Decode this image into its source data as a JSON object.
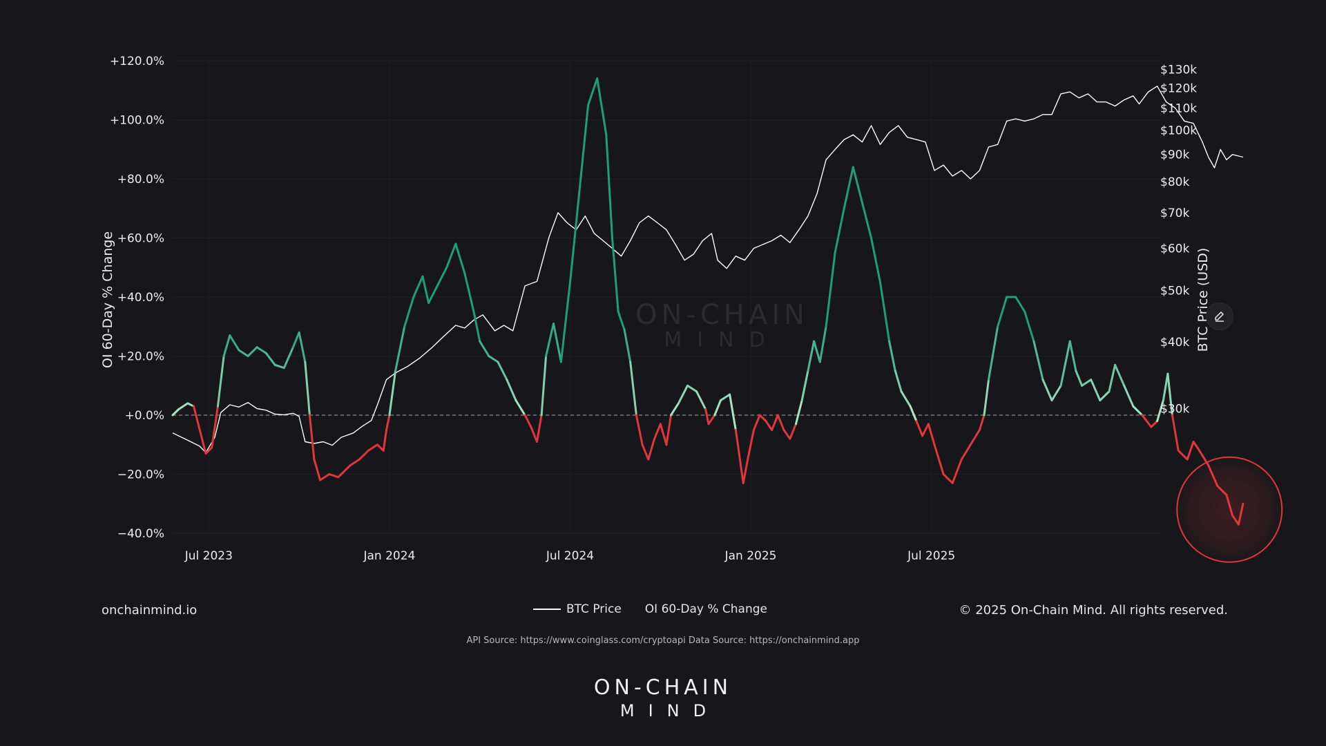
{
  "footer": {
    "site": "onchainmind.io",
    "copyright": "© 2025 On-Chain Mind. All rights reserved.",
    "api_source": "API Source: https://www.coinglass.com/cryptoapi Data Source: https://onchainmind.app",
    "logo_top": "ON-CHAIN",
    "logo_bottom": "MIND"
  },
  "watermark": {
    "top": "ON-CHAIN",
    "bottom": "MIND"
  },
  "legend": {
    "btc": "BTC Price",
    "oi": "OI 60-Day % Change"
  },
  "colors": {
    "background": "#17171b",
    "positive": "#1f9e7a",
    "positive_light": "#aee8c4",
    "negative": "#e0373b",
    "price": "#ffffff",
    "highlight": "#e0373b"
  },
  "chart_data": {
    "type": "line",
    "title": "",
    "xlabel": "",
    "ylabel": "OI 60-Day % Change",
    "y2label": "BTC Price (USD)",
    "x_ticks": [
      {
        "label": "Jul 2023",
        "month": 0
      },
      {
        "label": "Jan 2024",
        "month": 6
      },
      {
        "label": "Jul 2024",
        "month": 12
      },
      {
        "label": "Jan 2025",
        "month": 18
      },
      {
        "label": "Jul 2025",
        "month": 24
      }
    ],
    "x_range_months": [
      -1.2,
      31.6
    ],
    "y_left": {
      "range": [
        -40,
        120
      ],
      "ticks": [
        {
          "label": "+120.0%",
          "value": 120
        },
        {
          "label": "+100.0%",
          "value": 100
        },
        {
          "label": "+80.0%",
          "value": 80
        },
        {
          "label": "+60.0%",
          "value": 60
        },
        {
          "label": "+40.0%",
          "value": 40
        },
        {
          "label": "+20.0%",
          "value": 20
        },
        {
          "label": "+0.0%",
          "value": 0
        },
        {
          "label": "−20.0%",
          "value": -20
        },
        {
          "label": "−40.0%",
          "value": -40
        }
      ]
    },
    "y_right": {
      "scale": "log",
      "range": [
        17500,
        135000
      ],
      "ticks": [
        {
          "label": "$130k",
          "value": 130000
        },
        {
          "label": "$120k",
          "value": 120000
        },
        {
          "label": "$110k",
          "value": 110000
        },
        {
          "label": "$100k",
          "value": 100000
        },
        {
          "label": "$90k",
          "value": 90000
        },
        {
          "label": "$80k",
          "value": 80000
        },
        {
          "label": "$70k",
          "value": 70000
        },
        {
          "label": "$60k",
          "value": 60000
        },
        {
          "label": "$50k",
          "value": 50000
        },
        {
          "label": "$40k",
          "value": 40000
        },
        {
          "label": "$30k",
          "value": 30000
        }
      ]
    },
    "zero_line": 0,
    "series": [
      {
        "name": "OI 60-Day % Change",
        "axis": "left",
        "points": [
          [
            -1.2,
            0
          ],
          [
            -1.0,
            2
          ],
          [
            -0.7,
            4
          ],
          [
            -0.5,
            3
          ],
          [
            -0.3,
            -5
          ],
          [
            -0.1,
            -13
          ],
          [
            0.1,
            -11
          ],
          [
            0.3,
            3
          ],
          [
            0.5,
            20
          ],
          [
            0.7,
            27
          ],
          [
            1.0,
            22
          ],
          [
            1.3,
            20
          ],
          [
            1.6,
            23
          ],
          [
            1.9,
            21
          ],
          [
            2.2,
            17
          ],
          [
            2.5,
            16
          ],
          [
            2.8,
            23
          ],
          [
            3.0,
            28
          ],
          [
            3.2,
            18
          ],
          [
            3.35,
            0
          ],
          [
            3.5,
            -15
          ],
          [
            3.7,
            -22
          ],
          [
            4.0,
            -20
          ],
          [
            4.3,
            -21
          ],
          [
            4.7,
            -17
          ],
          [
            5.0,
            -15
          ],
          [
            5.3,
            -12
          ],
          [
            5.6,
            -10
          ],
          [
            5.8,
            -12
          ],
          [
            5.9,
            -5
          ],
          [
            6.0,
            0
          ],
          [
            6.2,
            15
          ],
          [
            6.5,
            30
          ],
          [
            6.8,
            40
          ],
          [
            7.1,
            47
          ],
          [
            7.3,
            38
          ],
          [
            7.6,
            44
          ],
          [
            7.9,
            50
          ],
          [
            8.2,
            58
          ],
          [
            8.5,
            48
          ],
          [
            8.8,
            35
          ],
          [
            9.0,
            25
          ],
          [
            9.3,
            20
          ],
          [
            9.6,
            18
          ],
          [
            9.9,
            12
          ],
          [
            10.2,
            5
          ],
          [
            10.5,
            0
          ],
          [
            10.7,
            -4
          ],
          [
            10.9,
            -9
          ],
          [
            11.05,
            0
          ],
          [
            11.2,
            20
          ],
          [
            11.45,
            31
          ],
          [
            11.7,
            18
          ],
          [
            12.0,
            45
          ],
          [
            12.3,
            75
          ],
          [
            12.6,
            105
          ],
          [
            12.9,
            114
          ],
          [
            13.2,
            95
          ],
          [
            13.4,
            60
          ],
          [
            13.6,
            35
          ],
          [
            13.8,
            29
          ],
          [
            14.0,
            18
          ],
          [
            14.2,
            0
          ],
          [
            14.4,
            -10
          ],
          [
            14.6,
            -15
          ],
          [
            14.8,
            -8
          ],
          [
            15.0,
            -3
          ],
          [
            15.2,
            -10
          ],
          [
            15.35,
            0
          ],
          [
            15.6,
            4
          ],
          [
            15.9,
            10
          ],
          [
            16.2,
            8
          ],
          [
            16.5,
            2
          ],
          [
            16.6,
            -3
          ],
          [
            16.8,
            0
          ],
          [
            17.0,
            5
          ],
          [
            17.3,
            7
          ],
          [
            17.5,
            -5
          ],
          [
            17.6,
            -12
          ],
          [
            17.75,
            -23
          ],
          [
            17.9,
            -15
          ],
          [
            18.1,
            -5
          ],
          [
            18.3,
            0
          ],
          [
            18.5,
            -2
          ],
          [
            18.7,
            -5
          ],
          [
            18.9,
            0
          ],
          [
            19.1,
            -5
          ],
          [
            19.3,
            -8
          ],
          [
            19.5,
            -3
          ],
          [
            19.7,
            5
          ],
          [
            19.9,
            15
          ],
          [
            20.1,
            25
          ],
          [
            20.3,
            18
          ],
          [
            20.5,
            30
          ],
          [
            20.8,
            55
          ],
          [
            21.1,
            70
          ],
          [
            21.4,
            84
          ],
          [
            21.7,
            72
          ],
          [
            22.0,
            60
          ],
          [
            22.3,
            45
          ],
          [
            22.6,
            25
          ],
          [
            22.8,
            15
          ],
          [
            23.0,
            8
          ],
          [
            23.3,
            3
          ],
          [
            23.5,
            -2
          ],
          [
            23.7,
            -7
          ],
          [
            23.9,
            -3
          ],
          [
            24.1,
            -10
          ],
          [
            24.4,
            -20
          ],
          [
            24.7,
            -23
          ],
          [
            25.0,
            -15
          ],
          [
            25.3,
            -10
          ],
          [
            25.6,
            -5
          ],
          [
            25.75,
            0
          ],
          [
            25.9,
            12
          ],
          [
            26.2,
            30
          ],
          [
            26.5,
            40
          ],
          [
            26.8,
            40
          ],
          [
            27.1,
            35
          ],
          [
            27.4,
            25
          ],
          [
            27.7,
            12
          ],
          [
            28.0,
            5
          ],
          [
            28.3,
            10
          ],
          [
            28.6,
            25
          ],
          [
            28.8,
            15
          ],
          [
            29.0,
            10
          ],
          [
            29.3,
            12
          ],
          [
            29.6,
            5
          ],
          [
            29.9,
            8
          ],
          [
            30.1,
            17
          ],
          [
            30.4,
            10
          ],
          [
            30.7,
            3
          ],
          [
            31.0,
            0
          ],
          [
            31.3,
            -4
          ],
          [
            31.5,
            -2
          ],
          [
            31.7,
            5
          ],
          [
            31.85,
            14
          ],
          [
            32.0,
            0
          ],
          [
            32.2,
            -12
          ],
          [
            32.5,
            -15
          ],
          [
            32.7,
            -9
          ],
          [
            32.9,
            -12
          ],
          [
            33.2,
            -17
          ],
          [
            33.5,
            -24
          ],
          [
            33.8,
            -27
          ],
          [
            34.0,
            -34
          ],
          [
            34.2,
            -37
          ],
          [
            34.35,
            -30
          ]
        ]
      },
      {
        "name": "BTC Price",
        "axis": "right",
        "points": [
          [
            -1.2,
            27000
          ],
          [
            -0.9,
            26500
          ],
          [
            -0.6,
            26000
          ],
          [
            -0.3,
            25500
          ],
          [
            -0.1,
            24800
          ],
          [
            0.2,
            26500
          ],
          [
            0.4,
            29500
          ],
          [
            0.7,
            30500
          ],
          [
            1.0,
            30200
          ],
          [
            1.3,
            30800
          ],
          [
            1.6,
            30000
          ],
          [
            1.9,
            29800
          ],
          [
            2.2,
            29300
          ],
          [
            2.5,
            29200
          ],
          [
            2.8,
            29400
          ],
          [
            3.0,
            29000
          ],
          [
            3.2,
            26000
          ],
          [
            3.5,
            25800
          ],
          [
            3.8,
            26000
          ],
          [
            4.1,
            25600
          ],
          [
            4.4,
            26500
          ],
          [
            4.8,
            27000
          ],
          [
            5.1,
            27800
          ],
          [
            5.4,
            28500
          ],
          [
            5.6,
            30500
          ],
          [
            5.9,
            34000
          ],
          [
            6.2,
            35000
          ],
          [
            6.6,
            36000
          ],
          [
            7.0,
            37300
          ],
          [
            7.4,
            39000
          ],
          [
            7.8,
            41000
          ],
          [
            8.2,
            43000
          ],
          [
            8.5,
            42500
          ],
          [
            8.8,
            44000
          ],
          [
            9.1,
            45000
          ],
          [
            9.5,
            42000
          ],
          [
            9.8,
            43000
          ],
          [
            10.1,
            42000
          ],
          [
            10.5,
            51000
          ],
          [
            10.9,
            52000
          ],
          [
            11.3,
            63000
          ],
          [
            11.6,
            70000
          ],
          [
            11.9,
            67000
          ],
          [
            12.2,
            65000
          ],
          [
            12.5,
            69000
          ],
          [
            12.8,
            64000
          ],
          [
            13.1,
            62000
          ],
          [
            13.4,
            60000
          ],
          [
            13.7,
            58000
          ],
          [
            14.0,
            62000
          ],
          [
            14.3,
            67000
          ],
          [
            14.6,
            69000
          ],
          [
            14.9,
            67000
          ],
          [
            15.2,
            65000
          ],
          [
            15.5,
            61000
          ],
          [
            15.8,
            57000
          ],
          [
            16.1,
            58500
          ],
          [
            16.4,
            62000
          ],
          [
            16.7,
            64000
          ],
          [
            16.9,
            57000
          ],
          [
            17.2,
            55000
          ],
          [
            17.5,
            58000
          ],
          [
            17.8,
            57000
          ],
          [
            18.1,
            60000
          ],
          [
            18.4,
            61000
          ],
          [
            18.7,
            62000
          ],
          [
            19.0,
            63500
          ],
          [
            19.3,
            61500
          ],
          [
            19.6,
            65000
          ],
          [
            19.9,
            69000
          ],
          [
            20.2,
            76000
          ],
          [
            20.5,
            88000
          ],
          [
            20.8,
            92000
          ],
          [
            21.1,
            96000
          ],
          [
            21.4,
            98000
          ],
          [
            21.7,
            95000
          ],
          [
            22.0,
            102000
          ],
          [
            22.3,
            94000
          ],
          [
            22.6,
            99000
          ],
          [
            22.9,
            102000
          ],
          [
            23.2,
            97000
          ],
          [
            23.5,
            96000
          ],
          [
            23.8,
            95000
          ],
          [
            24.1,
            84000
          ],
          [
            24.4,
            86000
          ],
          [
            24.7,
            82000
          ],
          [
            25.0,
            84000
          ],
          [
            25.3,
            81000
          ],
          [
            25.6,
            84000
          ],
          [
            25.9,
            93000
          ],
          [
            26.2,
            94000
          ],
          [
            26.5,
            104000
          ],
          [
            26.8,
            105000
          ],
          [
            27.1,
            104000
          ],
          [
            27.4,
            105000
          ],
          [
            27.7,
            107000
          ],
          [
            28.0,
            107000
          ],
          [
            28.3,
            117000
          ],
          [
            28.6,
            118000
          ],
          [
            28.9,
            115000
          ],
          [
            29.2,
            117000
          ],
          [
            29.5,
            113000
          ],
          [
            29.8,
            113000
          ],
          [
            30.1,
            111000
          ],
          [
            30.4,
            114000
          ],
          [
            30.7,
            116000
          ],
          [
            30.9,
            112000
          ],
          [
            31.2,
            118000
          ],
          [
            31.5,
            121000
          ],
          [
            31.8,
            113000
          ],
          [
            32.1,
            110000
          ],
          [
            32.4,
            104000
          ],
          [
            32.7,
            103000
          ],
          [
            33.0,
            95000
          ],
          [
            33.2,
            89000
          ],
          [
            33.4,
            85000
          ],
          [
            33.6,
            92000
          ],
          [
            33.8,
            88000
          ],
          [
            34.0,
            90000
          ],
          [
            34.35,
            89000
          ]
        ]
      }
    ],
    "annotations": [
      {
        "type": "circle",
        "x": 33.9,
        "y_left": -32,
        "note": "highlighted recent drop"
      }
    ]
  }
}
